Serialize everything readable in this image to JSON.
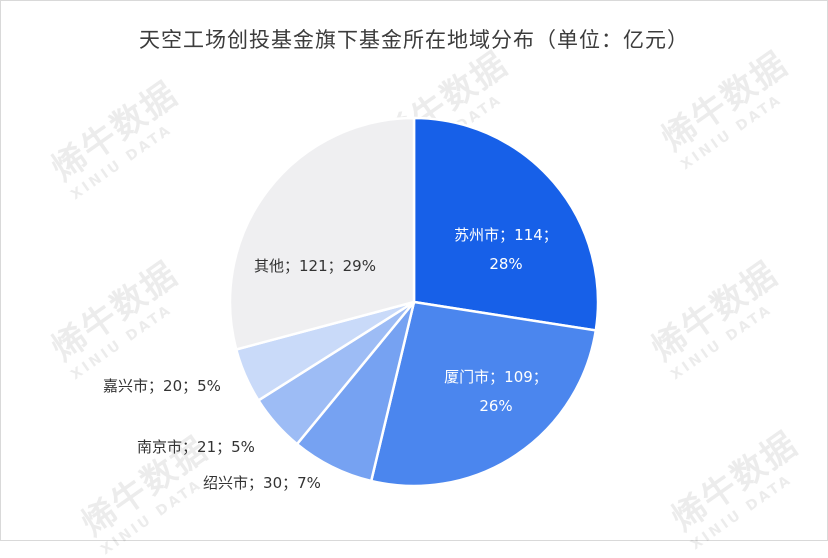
{
  "chart_data": {
    "type": "pie",
    "title": "天空工场创投基金旗下基金所在地域分布（单位：亿元）",
    "slices": [
      {
        "label": "苏州市",
        "value": 114,
        "percent": "28%",
        "color": "#1760e8",
        "display_line1": "苏州市；114；",
        "display_line2": "28%"
      },
      {
        "label": "厦门市",
        "value": 109,
        "percent": "26%",
        "color": "#4b86ee",
        "display_line1": "厦门市；109；",
        "display_line2": "26%"
      },
      {
        "label": "绍兴市",
        "value": 30,
        "percent": "7%",
        "color": "#76a2f2",
        "display_line1": "绍兴市；30；7%",
        "display_line2": ""
      },
      {
        "label": "南京市",
        "value": 21,
        "percent": "5%",
        "color": "#9dbcf5",
        "display_line1": "南京市；21；5%",
        "display_line2": ""
      },
      {
        "label": "嘉兴市",
        "value": 20,
        "percent": "5%",
        "color": "#c9daf9",
        "display_line1": "嘉兴市；20；5%",
        "display_line2": ""
      },
      {
        "label": "其他",
        "value": 121,
        "percent": "29%",
        "color": "#efeff1",
        "display_line1": "其他；121；29%",
        "display_line2": ""
      }
    ]
  },
  "watermark": {
    "text": "烯牛数据",
    "subtext": "XINIU DATA"
  }
}
